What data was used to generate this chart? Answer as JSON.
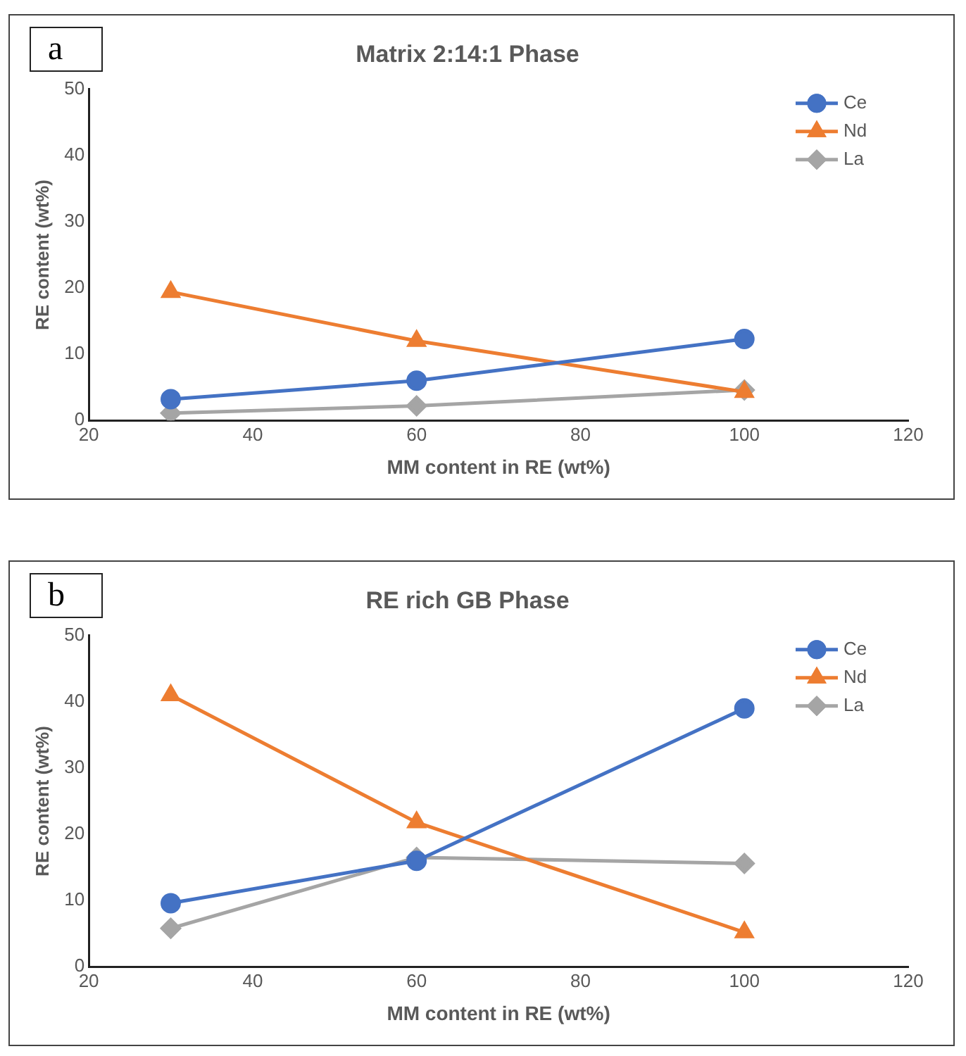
{
  "chart_data": [
    {
      "type": "line",
      "title": "Matrix 2:14:1 Phase",
      "xlabel": "MM content in RE (wt%)",
      "ylabel": "RE content (wt%)",
      "annotations": [
        "a"
      ],
      "x": [
        30,
        60,
        100
      ],
      "xlim": [
        20,
        120
      ],
      "xticks": [
        20,
        40,
        60,
        80,
        100,
        120
      ],
      "ylim": [
        0,
        50
      ],
      "yticks": [
        0,
        10,
        20,
        30,
        40,
        50
      ],
      "grid": false,
      "legend": "top right",
      "series": [
        {
          "name": "Ce",
          "color": "#4472c4",
          "marker": "circle",
          "values": [
            3.2,
            6.0,
            12.3
          ]
        },
        {
          "name": "Nd",
          "color": "#ed7d31",
          "marker": "triangle",
          "values": [
            19.4,
            12.0,
            4.3
          ]
        },
        {
          "name": "La",
          "color": "#a5a5a5",
          "marker": "diamond",
          "values": [
            1.1,
            2.2,
            4.6
          ]
        }
      ]
    },
    {
      "type": "line",
      "title": "RE rich GB Phase",
      "xlabel": "MM content in RE (wt%)",
      "ylabel": "RE content (wt%)",
      "annotations": [
        "b"
      ],
      "x": [
        30,
        60,
        100
      ],
      "xlim": [
        20,
        120
      ],
      "xticks": [
        20,
        40,
        60,
        80,
        100,
        120
      ],
      "ylim": [
        0,
        50
      ],
      "yticks": [
        0,
        10,
        20,
        30,
        40,
        50
      ],
      "grid": false,
      "legend": "top right",
      "series": [
        {
          "name": "Ce",
          "color": "#4472c4",
          "marker": "circle",
          "values": [
            9.6,
            16.0,
            39.0
          ]
        },
        {
          "name": "Nd",
          "color": "#ed7d31",
          "marker": "triangle",
          "values": [
            41.0,
            21.8,
            5.2
          ]
        },
        {
          "name": "La",
          "color": "#a5a5a5",
          "marker": "diamond",
          "values": [
            5.8,
            16.5,
            15.6
          ]
        }
      ]
    }
  ]
}
